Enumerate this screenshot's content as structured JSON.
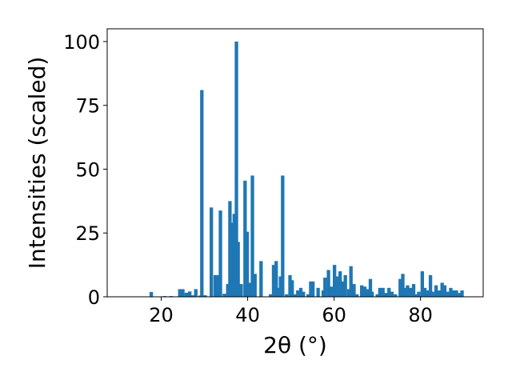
{
  "chart_data": {
    "type": "bar",
    "title": "",
    "xlabel": "2θ (°)",
    "ylabel": "Intensities (scaled)",
    "xlim": [
      7.5,
      94.5
    ],
    "ylim": [
      0,
      105
    ],
    "xticks": [
      20,
      40,
      60,
      80
    ],
    "yticks": [
      0,
      25,
      50,
      75,
      100
    ],
    "grid": false,
    "bar_color": "#1f77b4",
    "bar_width": 0.8,
    "points": [
      {
        "x": 17.7,
        "y": 1.9
      },
      {
        "x": 20.8,
        "y": 0.3
      },
      {
        "x": 22.3,
        "y": 0.3
      },
      {
        "x": 24.3,
        "y": 3.0
      },
      {
        "x": 25.0,
        "y": 3.0
      },
      {
        "x": 25.8,
        "y": 1.6
      },
      {
        "x": 26.6,
        "y": 2.1
      },
      {
        "x": 27.3,
        "y": 0.6
      },
      {
        "x": 28.0,
        "y": 3.0
      },
      {
        "x": 29.0,
        "y": 0.5
      },
      {
        "x": 29.4,
        "y": 81.0
      },
      {
        "x": 30.2,
        "y": 0.6
      },
      {
        "x": 31.6,
        "y": 35.0
      },
      {
        "x": 32.5,
        "y": 8.5
      },
      {
        "x": 33.0,
        "y": 8.5
      },
      {
        "x": 33.7,
        "y": 33.8
      },
      {
        "x": 34.6,
        "y": 1.2
      },
      {
        "x": 35.4,
        "y": 5.0
      },
      {
        "x": 35.9,
        "y": 37.5
      },
      {
        "x": 36.5,
        "y": 29.0
      },
      {
        "x": 36.9,
        "y": 32.5
      },
      {
        "x": 37.4,
        "y": 100.0
      },
      {
        "x": 37.8,
        "y": 21.5
      },
      {
        "x": 38.5,
        "y": 5.0
      },
      {
        "x": 39.4,
        "y": 45.5
      },
      {
        "x": 39.9,
        "y": 25.5
      },
      {
        "x": 40.6,
        "y": 5.5
      },
      {
        "x": 41.1,
        "y": 47.5
      },
      {
        "x": 41.7,
        "y": 9.0
      },
      {
        "x": 43.1,
        "y": 14.0
      },
      {
        "x": 45.3,
        "y": 1.0
      },
      {
        "x": 46.0,
        "y": 12.5
      },
      {
        "x": 46.6,
        "y": 14.0
      },
      {
        "x": 47.0,
        "y": 3.5
      },
      {
        "x": 47.6,
        "y": 8.0
      },
      {
        "x": 48.1,
        "y": 47.5
      },
      {
        "x": 49.0,
        "y": 1.0
      },
      {
        "x": 49.8,
        "y": 8.5
      },
      {
        "x": 50.3,
        "y": 6.5
      },
      {
        "x": 51.0,
        "y": 1.0
      },
      {
        "x": 51.6,
        "y": 2.5
      },
      {
        "x": 52.3,
        "y": 3.5
      },
      {
        "x": 52.9,
        "y": 2.0
      },
      {
        "x": 54.0,
        "y": 1.0
      },
      {
        "x": 54.6,
        "y": 6.0
      },
      {
        "x": 55.1,
        "y": 6.0
      },
      {
        "x": 56.3,
        "y": 3.5
      },
      {
        "x": 57.5,
        "y": 2.5
      },
      {
        "x": 57.9,
        "y": 7.5
      },
      {
        "x": 58.7,
        "y": 10.5
      },
      {
        "x": 59.3,
        "y": 4.0
      },
      {
        "x": 60.1,
        "y": 12.5
      },
      {
        "x": 60.6,
        "y": 8.0
      },
      {
        "x": 61.4,
        "y": 10.0
      },
      {
        "x": 62.1,
        "y": 6.0
      },
      {
        "x": 62.6,
        "y": 8.5
      },
      {
        "x": 63.4,
        "y": 3.0
      },
      {
        "x": 63.9,
        "y": 12.0
      },
      {
        "x": 64.6,
        "y": 5.0
      },
      {
        "x": 65.3,
        "y": 1.0
      },
      {
        "x": 66.4,
        "y": 4.5
      },
      {
        "x": 67.1,
        "y": 4.0
      },
      {
        "x": 67.8,
        "y": 3.0
      },
      {
        "x": 68.4,
        "y": 7.0
      },
      {
        "x": 68.8,
        "y": 2.0
      },
      {
        "x": 70.0,
        "y": 1.0
      },
      {
        "x": 70.6,
        "y": 3.5
      },
      {
        "x": 71.3,
        "y": 3.5
      },
      {
        "x": 72.0,
        "y": 1.5
      },
      {
        "x": 72.7,
        "y": 3.5
      },
      {
        "x": 73.4,
        "y": 2.0
      },
      {
        "x": 74.2,
        "y": 1.0
      },
      {
        "x": 75.3,
        "y": 7.0
      },
      {
        "x": 75.9,
        "y": 9.0
      },
      {
        "x": 76.4,
        "y": 3.5
      },
      {
        "x": 77.0,
        "y": 4.5
      },
      {
        "x": 77.7,
        "y": 3.5
      },
      {
        "x": 78.4,
        "y": 5.0
      },
      {
        "x": 79.1,
        "y": 1.0
      },
      {
        "x": 79.6,
        "y": 2.0
      },
      {
        "x": 80.4,
        "y": 10.0
      },
      {
        "x": 81.0,
        "y": 3.5
      },
      {
        "x": 81.7,
        "y": 2.5
      },
      {
        "x": 82.3,
        "y": 8.5
      },
      {
        "x": 82.8,
        "y": 2.0
      },
      {
        "x": 83.6,
        "y": 4.5
      },
      {
        "x": 84.3,
        "y": 2.5
      },
      {
        "x": 85.0,
        "y": 5.5
      },
      {
        "x": 85.6,
        "y": 4.5
      },
      {
        "x": 86.3,
        "y": 2.0
      },
      {
        "x": 87.0,
        "y": 3.5
      },
      {
        "x": 87.6,
        "y": 2.5
      },
      {
        "x": 88.3,
        "y": 2.5
      },
      {
        "x": 89.0,
        "y": 1.5
      },
      {
        "x": 89.6,
        "y": 2.5
      }
    ]
  }
}
